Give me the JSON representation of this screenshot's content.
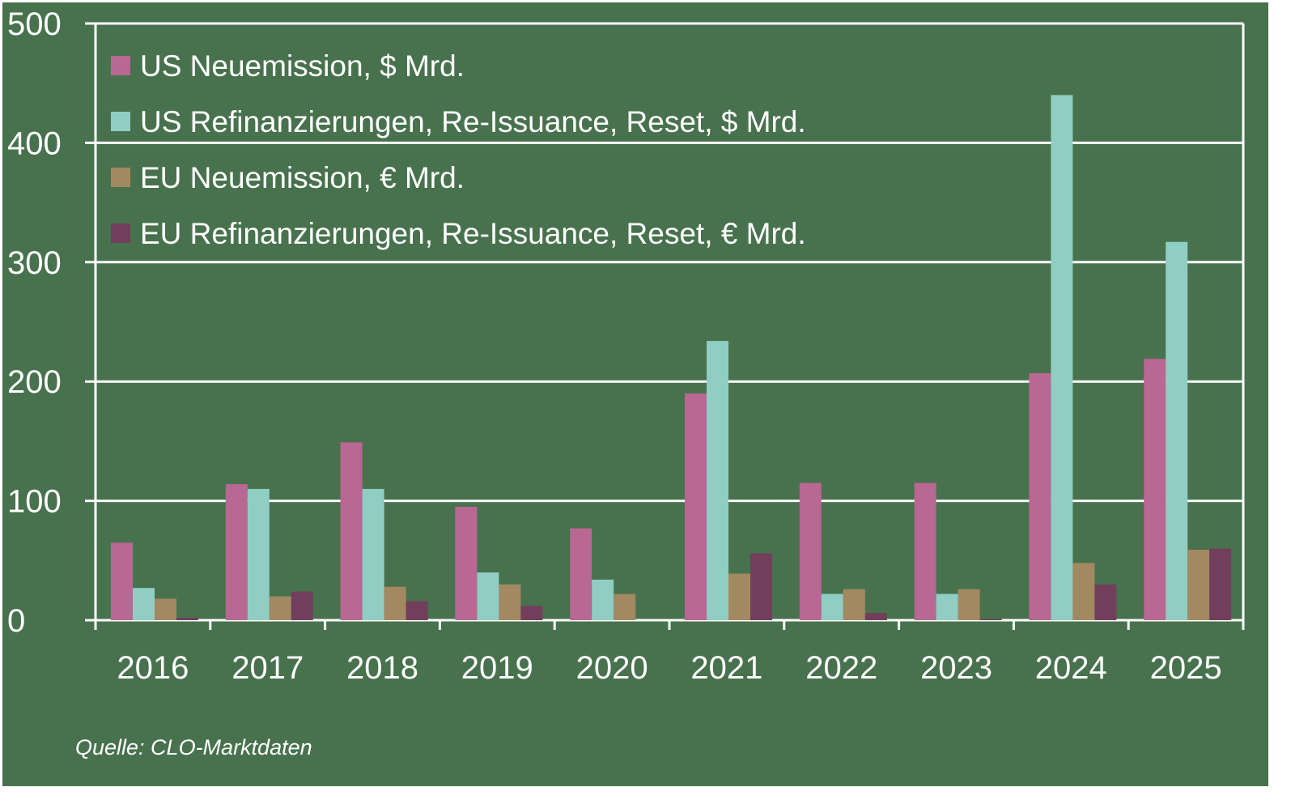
{
  "chart_data": {
    "type": "bar",
    "title": "",
    "xlabel": "",
    "ylabel": "",
    "ylim": [
      0,
      500
    ],
    "yticks": [
      0,
      100,
      200,
      300,
      400,
      500
    ],
    "grid": true,
    "legend_position": "top-left inside",
    "categories": [
      "2016",
      "2017",
      "2018",
      "2019",
      "2020",
      "2021",
      "2022",
      "2023",
      "2024",
      "2025"
    ],
    "series": [
      {
        "name": "US Neuemission, $ Mrd.",
        "color": "#b96793",
        "values": [
          65,
          114,
          149,
          95,
          77,
          190,
          115,
          115,
          207,
          219
        ]
      },
      {
        "name": "US Refinanzierungen, Re-Issuance, Reset, $ Mrd.",
        "color": "#90cec3",
        "values": [
          27,
          110,
          110,
          40,
          34,
          234,
          22,
          22,
          440,
          317
        ]
      },
      {
        "name": "EU Neuemission, € Mrd.",
        "color": "#a38961",
        "values": [
          18,
          20,
          28,
          30,
          22,
          39,
          26,
          26,
          48,
          59
        ]
      },
      {
        "name": "EU Refinanzierungen, Re-Issuance, Reset, € Mrd.",
        "color": "#713f5b",
        "values": [
          2,
          24,
          16,
          12,
          0,
          56,
          6,
          1,
          30,
          60
        ]
      }
    ]
  },
  "colors": {
    "background": "#48724e",
    "axis": "#ffffff",
    "text": "#ffffff"
  },
  "source": "Quelle: CLO-Marktdaten"
}
